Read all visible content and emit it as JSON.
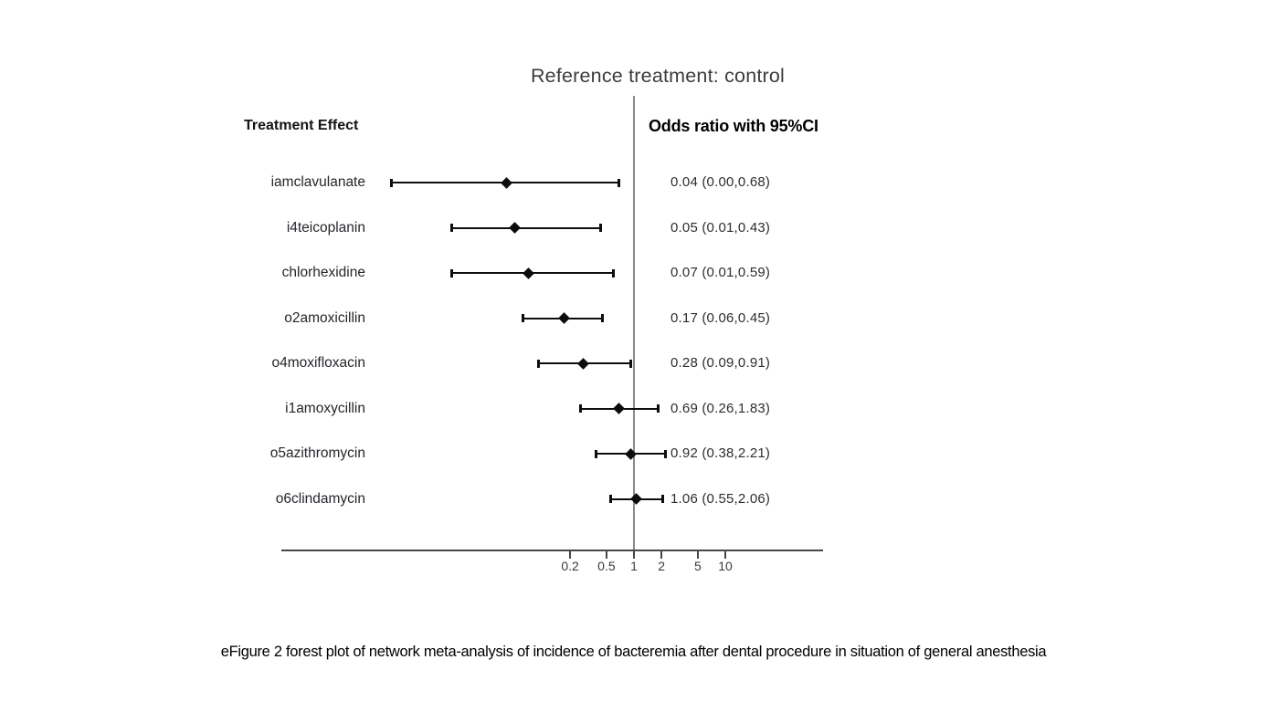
{
  "title": "Reference treatment: control",
  "column_headers": {
    "left": "Treatment Effect",
    "right": "Odds ratio with 95%CI"
  },
  "caption": "eFigure 2 forest plot of network meta-analysis of incidence of bacteremia after dental procedure in situation of general anesthesia",
  "colors": {
    "marker": "#0c0c0c",
    "ci_line": "#0e0e0e",
    "axis": "#474747",
    "reference_line": "#8a8a8a",
    "title_text": "#3c3c3c",
    "body_text": "#26262c"
  },
  "chart_data": {
    "type": "forest",
    "title": "Reference treatment: control",
    "effect_measure_label": "Odds ratio with 95%CI",
    "x_scale": "log10",
    "x_ticks": [
      0.2,
      0.5,
      1,
      2,
      5,
      10
    ],
    "x_tick_labels": [
      "0.2",
      "0.5",
      "1",
      "2",
      "5",
      "10"
    ],
    "reference_line_x": 1,
    "axis_range_drawn": [
      0.002,
      100
    ],
    "rows": [
      {
        "label": "iamclavulanate",
        "or_text": "0.04 (0.00,0.68)",
        "est": 0.04,
        "lo": 0.0,
        "hi": 0.68
      },
      {
        "label": "i4teicoplanin",
        "or_text": "0.05 (0.01,0.43)",
        "est": 0.05,
        "lo": 0.01,
        "hi": 0.43
      },
      {
        "label": "chlorhexidine",
        "or_text": "0.07 (0.01,0.59)",
        "est": 0.07,
        "lo": 0.01,
        "hi": 0.59
      },
      {
        "label": "o2amoxicillin",
        "or_text": "0.17 (0.06,0.45)",
        "est": 0.17,
        "lo": 0.06,
        "hi": 0.45
      },
      {
        "label": "o4moxifloxacin",
        "or_text": "0.28 (0.09,0.91)",
        "est": 0.28,
        "lo": 0.09,
        "hi": 0.91
      },
      {
        "label": "i1amoxycillin",
        "or_text": "0.69 (0.26,1.83)",
        "est": 0.69,
        "lo": 0.26,
        "hi": 1.83
      },
      {
        "label": "o5azithromycin",
        "or_text": "0.92 (0.38,2.21)",
        "est": 0.92,
        "lo": 0.38,
        "hi": 2.21
      },
      {
        "label": "o6clindamycin",
        "or_text": "1.06 (0.55,2.06)",
        "est": 1.06,
        "lo": 0.55,
        "hi": 2.06
      }
    ]
  }
}
